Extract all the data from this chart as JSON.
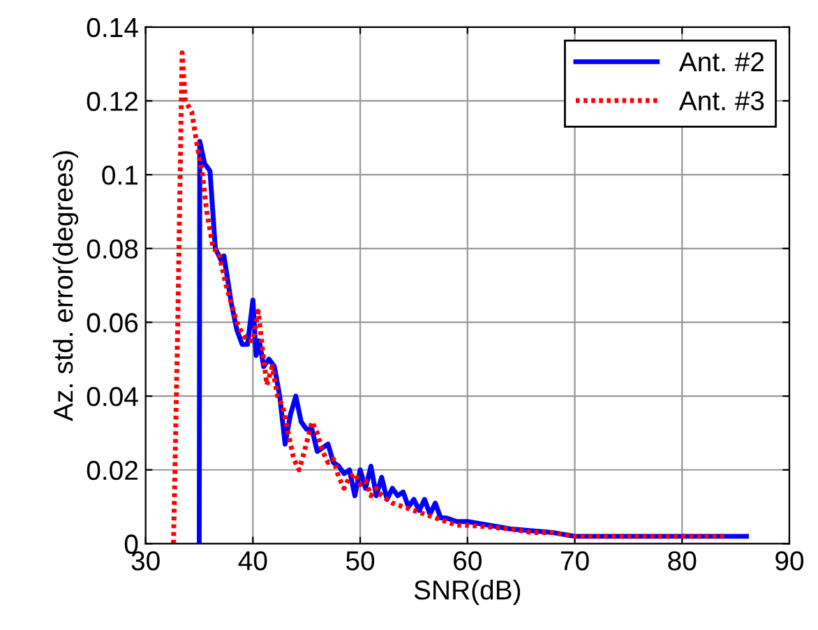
{
  "chart_data": {
    "type": "line",
    "xlabel": "SNR(dB)",
    "ylabel": "Az. std. error(degrees)",
    "xlim": [
      30,
      90
    ],
    "xticks": [
      30,
      40,
      50,
      60,
      70,
      80,
      90
    ],
    "ylim": [
      0,
      0.14
    ],
    "yticks": [
      0,
      0.02,
      0.04,
      0.06,
      0.08,
      0.1,
      0.12,
      0.14
    ],
    "grid": true,
    "legend": "top right",
    "series": [
      {
        "name": "Ant. #2",
        "color": "#0000ff",
        "line_style": "solid",
        "x": [
          35,
          35.05,
          35.5,
          36,
          36.5,
          37,
          37.3,
          38,
          38.5,
          39,
          39.5,
          40,
          40.3,
          40.6,
          41,
          41.5,
          42,
          42.5,
          43,
          43.5,
          44,
          44.5,
          45,
          45.5,
          46,
          47,
          47.5,
          48,
          48.5,
          49,
          49.5,
          50,
          50.5,
          51,
          51.5,
          52,
          52.5,
          53,
          53.5,
          54,
          54.5,
          55,
          55.5,
          56,
          56.5,
          57,
          57.5,
          58,
          59,
          60,
          62,
          64,
          66,
          68,
          70,
          75,
          80,
          86
        ],
        "values": [
          0,
          0.109,
          0.103,
          0.101,
          0.08,
          0.077,
          0.078,
          0.065,
          0.058,
          0.054,
          0.054,
          0.066,
          0.051,
          0.055,
          0.048,
          0.05,
          0.048,
          0.04,
          0.027,
          0.035,
          0.04,
          0.033,
          0.031,
          0.031,
          0.025,
          0.027,
          0.022,
          0.021,
          0.019,
          0.02,
          0.013,
          0.02,
          0.015,
          0.021,
          0.013,
          0.018,
          0.012,
          0.015,
          0.013,
          0.014,
          0.01,
          0.012,
          0.009,
          0.012,
          0.008,
          0.011,
          0.007,
          0.007,
          0.006,
          0.006,
          0.005,
          0.004,
          0.0035,
          0.003,
          0.002,
          0.002,
          0.002,
          0.002
        ]
      },
      {
        "name": "Ant. #3",
        "color": "#ff0000",
        "line_style": "dotted",
        "x": [
          32.6,
          33,
          33.4,
          33.7,
          34.3,
          34.8,
          35.3,
          35.7,
          36.3,
          36.8,
          37.5,
          38,
          38.5,
          39,
          39.5,
          40,
          40.5,
          41,
          41.3,
          41.8,
          42.3,
          42.8,
          43.3,
          43.8,
          44.3,
          44.8,
          45.5,
          46,
          46.5,
          47,
          47.5,
          48,
          48.5,
          49,
          49.5,
          50,
          50.5,
          51,
          51.5,
          52,
          52.5,
          53,
          54,
          55,
          56,
          57,
          58,
          59,
          60,
          62,
          64,
          66,
          68,
          70,
          72,
          75,
          80,
          84
        ],
        "values": [
          0,
          0.06,
          0.133,
          0.12,
          0.117,
          0.108,
          0.1,
          0.09,
          0.08,
          0.079,
          0.07,
          0.065,
          0.06,
          0.057,
          0.055,
          0.055,
          0.063,
          0.05,
          0.043,
          0.048,
          0.04,
          0.037,
          0.03,
          0.023,
          0.02,
          0.025,
          0.033,
          0.03,
          0.025,
          0.022,
          0.023,
          0.018,
          0.015,
          0.018,
          0.019,
          0.016,
          0.017,
          0.013,
          0.015,
          0.013,
          0.012,
          0.011,
          0.01,
          0.009,
          0.008,
          0.007,
          0.006,
          0.005,
          0.005,
          0.0045,
          0.004,
          0.003,
          0.003,
          0.002,
          0.002,
          0.002,
          0.002,
          0.002
        ]
      }
    ]
  }
}
